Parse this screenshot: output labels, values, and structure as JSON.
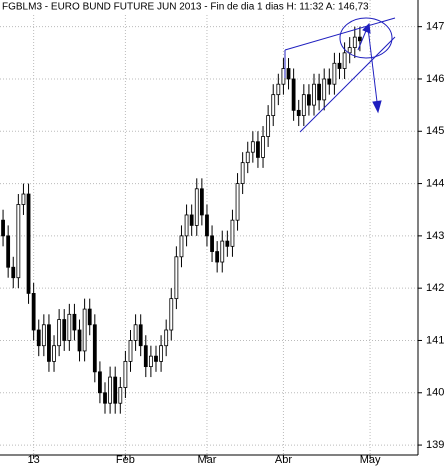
{
  "chart_data": {
    "type": "candlestick",
    "title": "FGBLM3 - EURO BUND FUTURE  JUN 2013 - Fin de dia 1 dias  H: 11:32  A: 146,73",
    "x": [
      0,
      1,
      2,
      3,
      4,
      5,
      6,
      7,
      8,
      9,
      10,
      11,
      12,
      13,
      14,
      15,
      16,
      17,
      18,
      19,
      20,
      21,
      22,
      23,
      24,
      25,
      26,
      27,
      28,
      29,
      30,
      31,
      32,
      33,
      34,
      35,
      36,
      37,
      38,
      39,
      40,
      41,
      42,
      43,
      44,
      45,
      46,
      47,
      48,
      49,
      50,
      51,
      52,
      53,
      54,
      55,
      56,
      57,
      58,
      59,
      60,
      61,
      62,
      63,
      64,
      65,
      66,
      67,
      68,
      69,
      70
    ],
    "open": [
      143.3,
      143.0,
      142.4,
      142.2,
      143.6,
      143.8,
      141.9,
      141.2,
      140.9,
      141.3,
      140.6,
      140.9,
      141.4,
      141.0,
      141.5,
      141.2,
      140.8,
      141.6,
      141.3,
      140.4,
      140.0,
      139.8,
      140.3,
      139.8,
      140.1,
      140.6,
      141.0,
      141.3,
      140.9,
      140.5,
      140.7,
      140.6,
      140.9,
      141.2,
      141.8,
      142.6,
      143.0,
      143.4,
      143.2,
      143.9,
      143.4,
      143.0,
      142.7,
      142.5,
      142.9,
      142.8,
      143.3,
      144.0,
      144.4,
      144.6,
      144.8,
      144.5,
      144.9,
      145.3,
      145.7,
      145.9,
      146.2,
      146.0,
      145.4,
      145.3,
      145.7,
      145.5,
      145.9,
      145.6,
      146.0,
      145.9,
      146.3,
      146.2,
      146.5,
      146.6,
      146.8
    ],
    "high": [
      143.5,
      143.2,
      142.6,
      143.8,
      144.0,
      144.0,
      142.1,
      141.4,
      141.5,
      141.5,
      141.1,
      141.6,
      141.6,
      141.7,
      141.7,
      141.4,
      141.8,
      141.8,
      141.5,
      140.6,
      140.2,
      140.5,
      140.5,
      140.3,
      140.8,
      141.2,
      141.5,
      141.5,
      141.1,
      140.9,
      140.9,
      141.1,
      141.4,
      142.0,
      142.8,
      143.2,
      143.6,
      143.6,
      144.1,
      144.1,
      143.6,
      143.2,
      142.9,
      143.1,
      143.1,
      143.5,
      144.2,
      144.6,
      144.8,
      145.0,
      145.0,
      145.1,
      145.5,
      145.9,
      146.1,
      146.4,
      146.4,
      146.2,
      145.6,
      145.9,
      145.9,
      146.1,
      146.1,
      146.2,
      146.2,
      146.5,
      146.5,
      146.7,
      146.8,
      147.0,
      147.0
    ],
    "low": [
      142.8,
      142.2,
      142.0,
      142.0,
      143.4,
      141.7,
      141.0,
      140.7,
      140.7,
      140.4,
      140.4,
      140.7,
      140.8,
      140.8,
      141.0,
      140.6,
      140.6,
      141.1,
      140.2,
      139.8,
      139.6,
      139.6,
      139.6,
      139.6,
      139.9,
      140.4,
      140.8,
      140.7,
      140.3,
      140.3,
      140.4,
      140.4,
      140.7,
      141.0,
      141.6,
      142.4,
      142.8,
      143.0,
      143.0,
      143.2,
      142.8,
      142.5,
      142.3,
      142.3,
      142.6,
      142.6,
      143.1,
      143.8,
      144.2,
      144.4,
      144.3,
      144.3,
      144.7,
      145.1,
      145.5,
      145.7,
      145.8,
      145.2,
      145.1,
      145.1,
      145.3,
      145.3,
      145.4,
      145.4,
      145.7,
      145.7,
      146.0,
      146.0,
      146.3,
      146.4,
      146.53
    ],
    "close": [
      143.0,
      142.4,
      142.2,
      143.6,
      143.8,
      141.9,
      141.2,
      140.9,
      141.3,
      140.6,
      140.9,
      141.4,
      141.0,
      141.5,
      141.2,
      140.8,
      141.6,
      141.3,
      140.4,
      140.0,
      139.8,
      140.3,
      139.8,
      140.1,
      140.6,
      141.0,
      141.3,
      140.9,
      140.5,
      140.7,
      140.6,
      140.9,
      141.2,
      141.8,
      142.6,
      143.0,
      143.4,
      143.2,
      143.9,
      143.4,
      143.0,
      142.7,
      142.5,
      142.9,
      142.8,
      143.3,
      144.0,
      144.4,
      144.6,
      144.8,
      144.5,
      144.9,
      145.3,
      145.7,
      145.9,
      146.2,
      146.0,
      145.4,
      145.3,
      145.7,
      145.5,
      145.9,
      145.6,
      146.0,
      145.9,
      146.3,
      146.2,
      146.5,
      146.6,
      146.8,
      146.73
    ],
    "up_color": "#ffffff",
    "down_color": "#000000",
    "xlim": [
      -0.6,
      81.4
    ],
    "xticks": [
      {
        "value": 6,
        "label": "13"
      },
      {
        "value": 24,
        "label": "Feb"
      },
      {
        "value": 40,
        "label": "Mar"
      },
      {
        "value": 55,
        "label": "Abr"
      },
      {
        "value": 72,
        "label": "May"
      }
    ],
    "ylim": [
      138.81,
      147.51
    ],
    "yticks": [
      139,
      140,
      141,
      142,
      143,
      144,
      145,
      146,
      147
    ],
    "grid": true
  }
}
